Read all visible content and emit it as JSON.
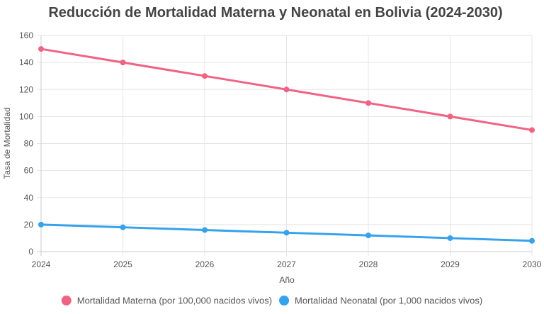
{
  "chart_data": {
    "type": "line",
    "title": "Reducción de Mortalidad Materna y Neonatal en Bolivia (2024-2030)",
    "xlabel": "Año",
    "ylabel": "Tasa de Mortalidad",
    "x": [
      "2024",
      "2025",
      "2026",
      "2027",
      "2028",
      "2029",
      "2030"
    ],
    "ylim": [
      0,
      160
    ],
    "yticks": [
      0,
      20,
      40,
      60,
      80,
      100,
      120,
      140,
      160
    ],
    "grid": true,
    "legend_position": "bottom",
    "series": [
      {
        "name": "Mortalidad Materna (por 100,000 nacidos vivos)",
        "color": "#f06384",
        "values": [
          150,
          140,
          130,
          120,
          110,
          100,
          90
        ]
      },
      {
        "name": "Mortalidad Neonatal (por 1,000 nacidos vivos)",
        "color": "#36a2eb",
        "values": [
          20,
          18,
          16,
          14,
          12,
          10,
          8
        ]
      }
    ]
  }
}
